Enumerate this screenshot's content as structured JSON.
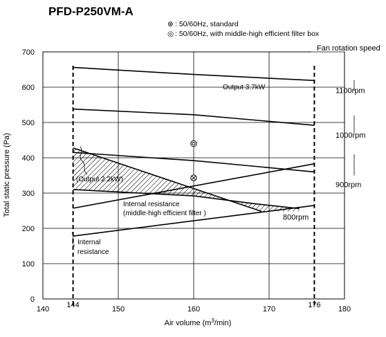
{
  "chart_data": {
    "type": "line",
    "title": "PFD-P250VM-A",
    "legend": [
      {
        "symbol": "⊗",
        "text": ": 50/60Hz, standard"
      },
      {
        "symbol": "◎",
        "text": ": 50/60Hz, with middle-high efficient filter box"
      }
    ],
    "xlabel_pre": "Air volume (m",
    "xlabel_sup": "3",
    "xlabel_post": "/min)",
    "ylabel": "Total static pressure (Pa)",
    "xlim": [
      140,
      180
    ],
    "ylim": [
      0,
      700
    ],
    "x_ticks": [
      {
        "value": 140,
        "label": "140"
      },
      {
        "value": 144,
        "label": "144"
      },
      {
        "value": 150,
        "label": "150"
      },
      {
        "value": 160,
        "label": "160"
      },
      {
        "value": 170,
        "label": "170"
      },
      {
        "value": 176,
        "label": "176"
      },
      {
        "value": 180,
        "label": "180"
      }
    ],
    "y_ticks": [
      {
        "value": 0,
        "label": "0"
      },
      {
        "value": 100,
        "label": "100"
      },
      {
        "value": 200,
        "label": "200"
      },
      {
        "value": 300,
        "label": "300"
      },
      {
        "value": 400,
        "label": "400"
      },
      {
        "value": 500,
        "label": "500"
      },
      {
        "value": 600,
        "label": "600"
      },
      {
        "value": 700,
        "label": "700"
      }
    ],
    "grid": true,
    "range_limits": [
      144,
      176
    ],
    "fan_speed_title": "Fan rotation speed",
    "fan_curves": [
      {
        "name": "1100rpm",
        "x": [
          144,
          160,
          176
        ],
        "y": [
          656,
          636,
          619
        ]
      },
      {
        "name": "1000rpm",
        "x": [
          144,
          160,
          176
        ],
        "y": [
          538,
          522,
          492
        ]
      },
      {
        "name": "900rpm",
        "x": [
          144,
          160,
          176
        ],
        "y": [
          415,
          392,
          360
        ]
      },
      {
        "name": "800rpm",
        "x": [
          144,
          160,
          168,
          174
        ],
        "y": [
          310,
          292,
          270,
          256
        ]
      }
    ],
    "resistance_curves": [
      {
        "name": "Internal resistance",
        "x": [
          144,
          176
        ],
        "y": [
          178,
          265
        ]
      },
      {
        "name": "Internal resistance (middle-high efficient filter )",
        "x": [
          144,
          176
        ],
        "y": [
          257,
          383
        ]
      }
    ],
    "output_limit_lines": [
      {
        "name": "Output 2.2kW",
        "x": [
          144,
          169
        ],
        "y": [
          428,
          248
        ]
      }
    ],
    "markers": [
      {
        "type": "standard",
        "symbol": "⊗",
        "x": 160,
        "y": 343
      },
      {
        "type": "filter",
        "symbol": "◎",
        "x": 160,
        "y": 440
      }
    ],
    "annotations": {
      "output_37": "Output 3.7kW",
      "output_22": "(Output 2.2kW)",
      "int_res_filter_line1": "Internal resistance",
      "int_res_filter_line2": "(middle-high efficient filter )",
      "int_res_line1": "Internal",
      "int_res_line2": "resistance"
    }
  }
}
